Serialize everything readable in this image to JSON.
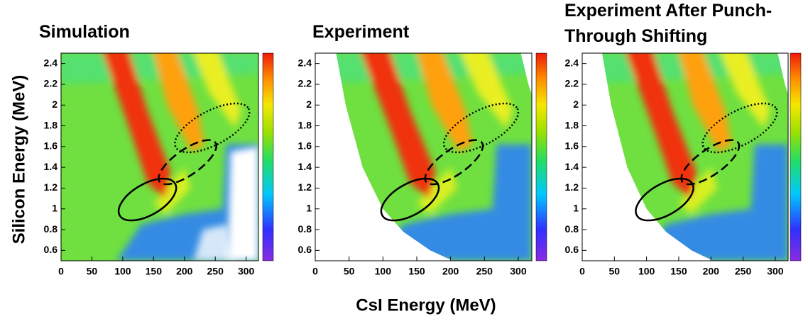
{
  "chart_data": [
    {
      "type": "heatmap",
      "title": "Simulation",
      "ylabel": "Silicon Energy (MeV)",
      "xlim": [
        0,
        320
      ],
      "xticks": [
        0,
        50,
        100,
        150,
        200,
        250,
        300
      ],
      "ylim": [
        0.5,
        2.5
      ],
      "yticks": [
        0.6,
        0.8,
        1,
        1.2,
        1.4,
        1.6,
        1.8,
        2,
        2.2,
        2.4
      ]
    },
    {
      "type": "heatmap",
      "title": "Experiment",
      "xlabel": "CsI Energy (MeV)",
      "xlim": [
        0,
        320
      ],
      "xticks": [
        0,
        50,
        100,
        150,
        200,
        250,
        300
      ],
      "ylim": [
        0.5,
        2.5
      ],
      "yticks": [
        0.6,
        0.8,
        1,
        1.2,
        1.4,
        1.6,
        1.8,
        2,
        2.2,
        2.4
      ]
    },
    {
      "type": "heatmap",
      "title": "Experiment After Punch-Through Shifting",
      "xlim": [
        0,
        320
      ],
      "xticks": [
        0,
        50,
        100,
        150,
        200,
        250,
        300
      ],
      "ylim": [
        0.5,
        2.5
      ],
      "yticks": [
        0.6,
        0.8,
        1,
        1.2,
        1.4,
        1.6,
        1.8,
        2,
        2.2,
        2.4
      ]
    }
  ]
}
